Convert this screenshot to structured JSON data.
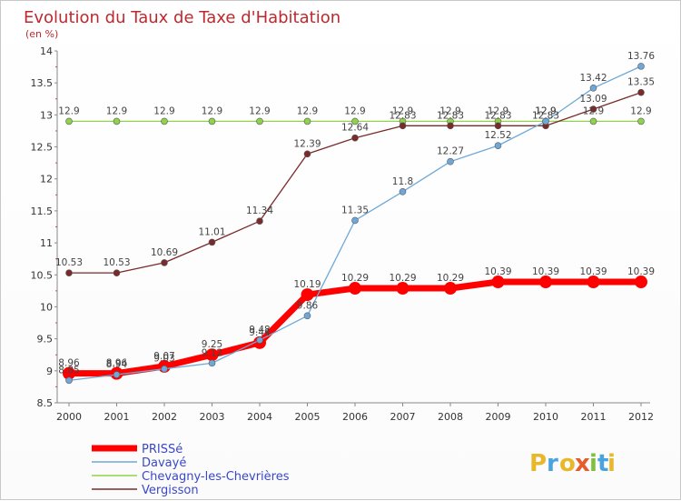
{
  "chart_data": {
    "type": "line",
    "title": "Evolution du Taux de Taxe d'Habitation",
    "subtitle": "(en %)",
    "x": [
      "2000",
      "2001",
      "2002",
      "2003",
      "2004",
      "2005",
      "2006",
      "2007",
      "2008",
      "2009",
      "2010",
      "2011",
      "2012"
    ],
    "ylim": [
      8.5,
      14
    ],
    "yticks": [
      "8.5",
      "9",
      "9.5",
      "10",
      "10.5",
      "11",
      "11.5",
      "12",
      "12.5",
      "13",
      "13.5",
      "14"
    ],
    "grid": false,
    "legend_position": "bottom-left",
    "series": [
      {
        "name": "PRISSé",
        "color": "#ff0000",
        "values": [
          8.96,
          8.96,
          9.07,
          9.25,
          9.44,
          10.19,
          10.29,
          10.29,
          10.29,
          10.39,
          10.39,
          10.39,
          10.39
        ],
        "labels": [
          "8.96",
          "8.96",
          "9.07",
          "9.25",
          "9.44",
          "10.19",
          "10.29",
          "10.29",
          "10.29",
          "10.39",
          "10.39",
          "10.39",
          "10.39"
        ]
      },
      {
        "name": "Davayé",
        "color": "#6fa8d8",
        "values": [
          8.85,
          8.94,
          9.03,
          9.12,
          9.48,
          9.86,
          11.35,
          11.8,
          12.27,
          12.52,
          12.9,
          13.42,
          13.76
        ],
        "labels": [
          "8.85",
          "8.94",
          "9.03",
          "9.12",
          "9.48",
          "9.86",
          "11.35",
          "11.8",
          "12.27",
          "12.52",
          "12.9",
          "13.42",
          "13.76"
        ]
      },
      {
        "name": "Chevagny-les-Chevrières",
        "color": "#8fd34a",
        "values": [
          12.9,
          12.9,
          12.9,
          12.9,
          12.9,
          12.9,
          12.9,
          12.9,
          12.9,
          12.9,
          12.9,
          12.9,
          12.9
        ],
        "labels": [
          "12.9",
          "12.9",
          "12.9",
          "12.9",
          "12.9",
          "12.9",
          "12.9",
          "12.9",
          "12.9",
          "12.9",
          "12.9",
          "12.9",
          "12.9"
        ]
      },
      {
        "name": "Vergisson",
        "color": "#7a2a2a",
        "values": [
          10.53,
          10.53,
          10.69,
          11.01,
          11.34,
          12.39,
          12.64,
          12.83,
          12.83,
          12.83,
          12.83,
          13.09,
          13.35
        ],
        "labels": [
          "10.53",
          "10.53",
          "10.69",
          "11.01",
          "11.34",
          "12.39",
          "12.64",
          "12.83",
          "12.83",
          "12.83",
          "12.83",
          "13.09",
          "13.35"
        ]
      }
    ]
  },
  "logo": {
    "letters": [
      "P",
      "r",
      "o",
      "x",
      "i",
      "t",
      "i"
    ],
    "colors": [
      "#e8b72a",
      "#4aa3df",
      "#e8b72a",
      "#e85a2a",
      "#7fbf3f",
      "#4aa3df",
      "#e8b72a"
    ]
  }
}
